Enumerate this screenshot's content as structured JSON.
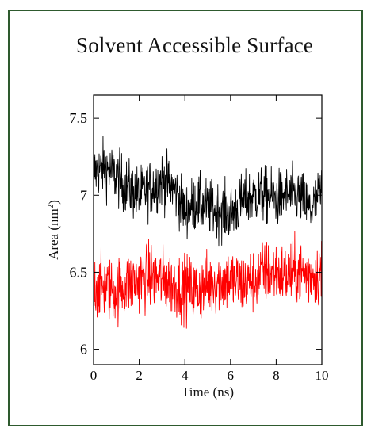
{
  "chart_data": {
    "type": "line",
    "title": "Solvent Accessible Surface",
    "xlabel": "Time (ns)",
    "ylabel_text": "Area (nm",
    "ylabel_sup": "2",
    "ylabel_close": ")",
    "xlim": [
      0,
      10
    ],
    "ylim": [
      5.9,
      7.65
    ],
    "xticks": [
      0,
      2,
      4,
      6,
      8,
      10
    ],
    "xtick_labels": [
      "0",
      "2",
      "4",
      "6",
      "8",
      "10"
    ],
    "yticks": [
      6,
      6.5,
      7,
      7.5
    ],
    "ytick_labels": [
      "6",
      "6.5",
      "7",
      "7.5"
    ],
    "grid": false,
    "series": [
      {
        "color": "#000000",
        "x": [
          0,
          0.5,
          1,
          1.5,
          2,
          2.5,
          3,
          3.5,
          4,
          4.5,
          5,
          5.5,
          6,
          6.5,
          7,
          7.5,
          8,
          8.5,
          9,
          9.5,
          10
        ],
        "y": [
          7.15,
          7.18,
          7.12,
          7.05,
          7.0,
          7.05,
          7.1,
          7.05,
          6.9,
          6.95,
          6.92,
          6.9,
          6.88,
          6.95,
          7.0,
          7.0,
          6.98,
          7.0,
          7.0,
          6.9,
          7.02
        ],
        "fluctuation": 0.13
      },
      {
        "color": "#ff0000",
        "x": [
          0,
          0.5,
          1,
          1.5,
          2,
          2.5,
          3,
          3.5,
          4,
          4.5,
          5,
          5.5,
          6,
          6.5,
          7,
          7.5,
          8,
          8.5,
          9,
          9.5,
          10
        ],
        "y": [
          6.42,
          6.4,
          6.38,
          6.42,
          6.45,
          6.48,
          6.45,
          6.42,
          6.4,
          6.38,
          6.42,
          6.45,
          6.45,
          6.42,
          6.45,
          6.5,
          6.5,
          6.48,
          6.5,
          6.48,
          6.5
        ],
        "fluctuation": 0.15
      }
    ]
  }
}
